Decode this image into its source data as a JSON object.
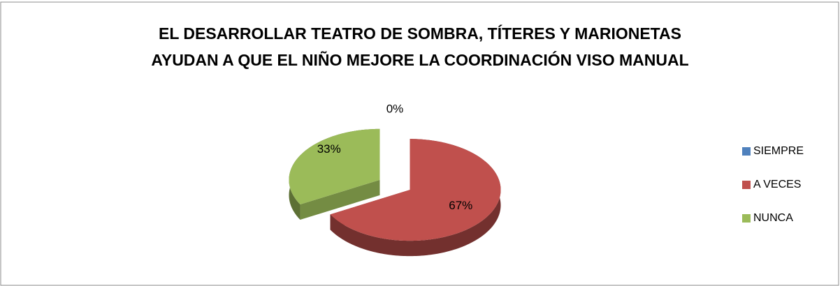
{
  "chart_data": {
    "type": "pie3d",
    "title": [
      "EL DESARROLLAR  TEATRO DE SOMBRA, TÍTERES Y MARIONETAS",
      "AYUDAN A QUE EL NIÑO MEJORE LA COORDINACIÓN VISO MANUAL"
    ],
    "categories": [
      "SIEMPRE",
      "A VECES",
      "NUNCA"
    ],
    "values": [
      0,
      67,
      33
    ],
    "value_labels": [
      "0%",
      "67%",
      "33%"
    ],
    "colors": [
      "#4f81bd",
      "#c0504d",
      "#9bbb59"
    ],
    "legend": "right"
  }
}
